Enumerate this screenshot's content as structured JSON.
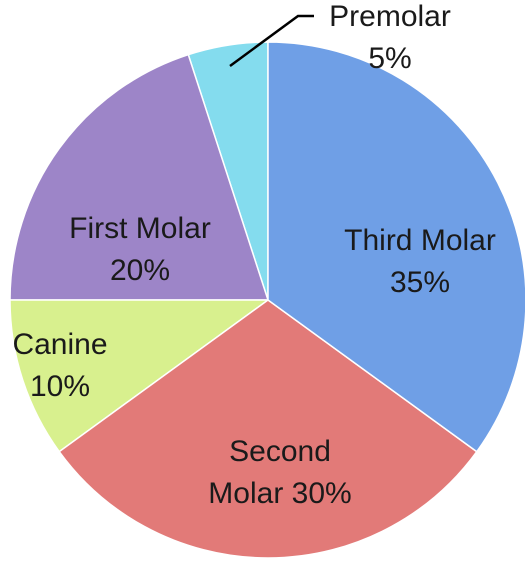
{
  "chart_data": {
    "type": "pie",
    "categories": [
      "Third Molar",
      "Second Molar",
      "Canine",
      "First Molar",
      "Premolar"
    ],
    "values": [
      35,
      30,
      10,
      20,
      5
    ],
    "value_labels": [
      "35%",
      "30%",
      "10%",
      "20%",
      "5%"
    ],
    "colors": [
      "#6f9fe6",
      "#e27a78",
      "#d8f08e",
      "#9d85c8",
      "#84dcee"
    ]
  }
}
